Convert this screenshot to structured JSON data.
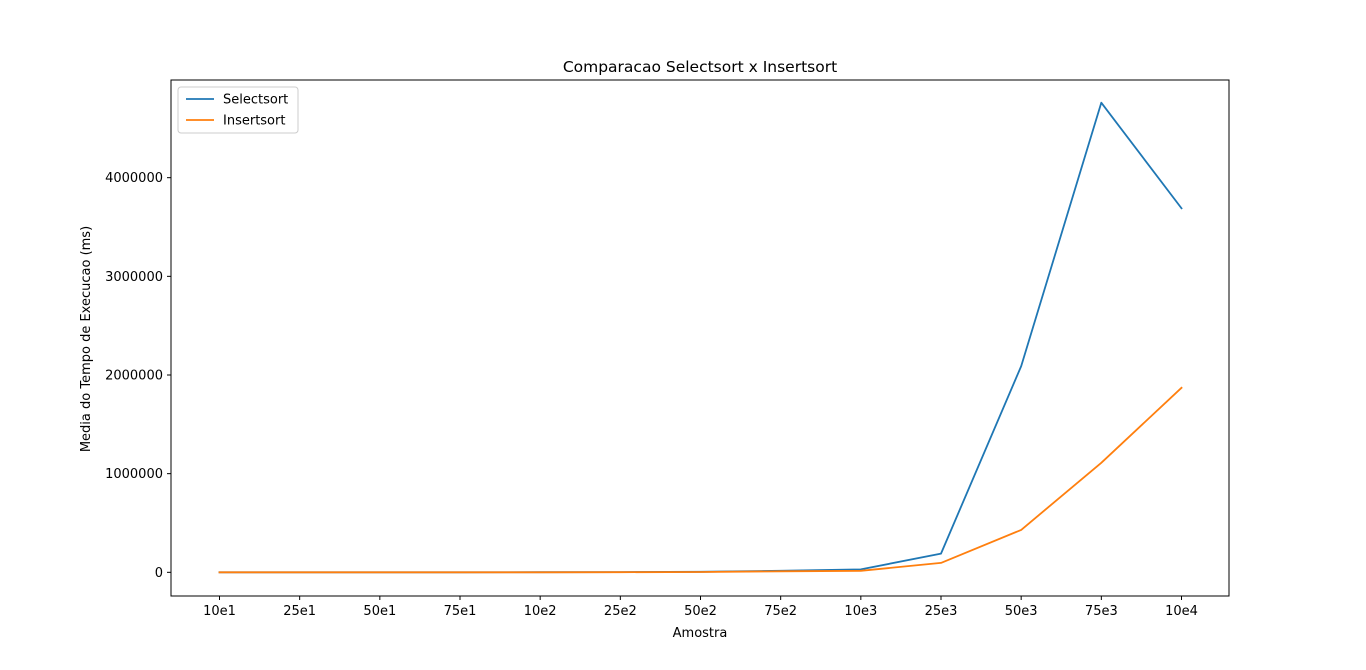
{
  "chart_data": {
    "type": "line",
    "title": "Comparacao Selectsort x Insertsort",
    "xlabel": "Amostra",
    "ylabel": "Media do Tempo de Execucao (ms)",
    "categories": [
      "10e1",
      "25e1",
      "50e1",
      "75e1",
      "10e2",
      "25e2",
      "50e2",
      "75e2",
      "10e3",
      "25e3",
      "50e3",
      "75e3",
      "10e4"
    ],
    "yticks": [
      0,
      1000000,
      2000000,
      3000000,
      4000000
    ],
    "ytick_labels": [
      "0",
      "1000000",
      "2000000",
      "3000000",
      "4000000"
    ],
    "ylim": [
      -240000,
      4990000
    ],
    "grid": false,
    "legend_position": "upper left",
    "series": [
      {
        "name": "Selectsort",
        "color": "#1f77b4",
        "values": [
          10,
          50,
          200,
          450,
          800,
          2000,
          5000,
          15000,
          30000,
          190000,
          2090000,
          4760000,
          3690000
        ]
      },
      {
        "name": "Insertsort",
        "color": "#ff7f0e",
        "values": [
          5,
          25,
          100,
          200,
          400,
          1000,
          3000,
          10000,
          15000,
          95000,
          430000,
          1110000,
          1870000
        ]
      }
    ]
  }
}
